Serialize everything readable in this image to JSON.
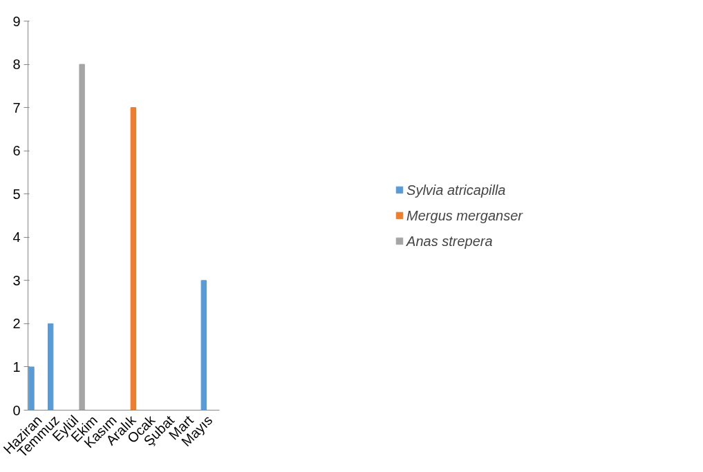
{
  "chart_data": {
    "type": "bar",
    "categories": [
      "Haziran",
      "Temmuz",
      "Eylül",
      "Ekim",
      "Kasım",
      "Aralık",
      "Ocak",
      "Şubat",
      "Mart",
      "Mayıs"
    ],
    "series": [
      {
        "name": "Sylvia atricapilla",
        "color": "#5b9bd5",
        "values": [
          1,
          2,
          null,
          null,
          null,
          null,
          null,
          null,
          null,
          3
        ]
      },
      {
        "name": "Mergus merganser",
        "color": "#ed7d31",
        "values": [
          null,
          null,
          null,
          null,
          null,
          7,
          null,
          null,
          null,
          null
        ]
      },
      {
        "name": "Anas strepera",
        "color": "#a5a5a5",
        "values": [
          null,
          null,
          8,
          null,
          null,
          null,
          null,
          null,
          null,
          null
        ]
      }
    ],
    "ylim": [
      0,
      9
    ],
    "yticks": [
      0,
      1,
      2,
      3,
      4,
      5,
      6,
      7,
      8,
      9
    ],
    "grid": false,
    "legend": "right"
  }
}
